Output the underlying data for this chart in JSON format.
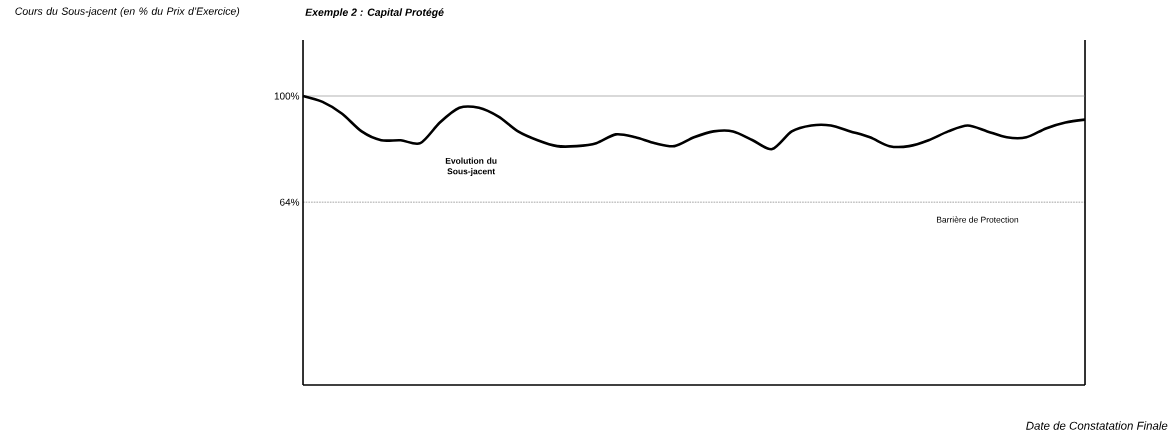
{
  "chart_data": {
    "type": "line",
    "title": "Exemple 2 : Capital Protégé",
    "ylabel": "Cours du Sous-jacent (en % du Prix d’Exercice)",
    "xlabel": "Date de Constatation Finale",
    "annotations": [
      "Evolution du Sous-jacent"
    ],
    "categories": [
      null,
      null,
      null,
      null,
      null,
      null,
      null,
      null,
      null,
      null,
      null,
      null,
      null,
      null,
      null,
      null,
      null,
      null,
      null,
      null,
      null,
      null,
      null,
      null,
      null,
      null,
      null,
      null,
      null,
      null,
      null,
      null,
      null,
      null,
      null,
      null,
      null,
      null,
      null,
      null,
      null
    ],
    "series": [
      {
        "color": "#000000",
        "values": [
          100,
          98,
          94,
          88,
          85,
          85,
          84,
          91,
          96,
          96,
          93,
          88,
          85,
          83,
          83,
          84,
          87,
          86,
          84,
          83,
          86,
          88,
          88,
          85,
          82,
          88,
          90,
          90,
          88,
          86,
          83,
          83,
          85,
          88,
          90,
          88,
          86,
          86,
          89,
          91,
          92
        ]
      }
    ],
    "ylim": [
      2,
      119
    ],
    "yticks": [
      {
        "value": 64,
        "label": "64%"
      },
      {
        "value": 100,
        "label": "100%"
      }
    ],
    "tick_labels": "y",
    "ref_lines": [
      {
        "axis": "y",
        "value": 100,
        "color": "#808080",
        "line_style": "solid"
      },
      {
        "axis": "y",
        "value": 64,
        "label": "Barrière de Protection",
        "color": "#000000",
        "line_style": "dotted"
      }
    ],
    "grid": false,
    "marker": "none",
    "line_style": "solid"
  }
}
